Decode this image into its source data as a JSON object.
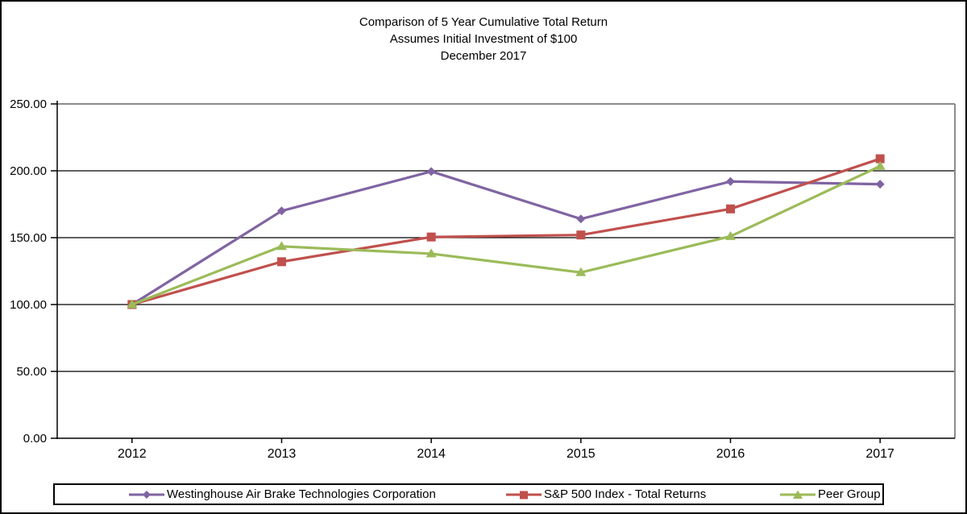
{
  "title": {
    "line1": "Comparison of 5 Year Cumulative  Total Return",
    "line2": "Assumes  Initial Investment  of $100",
    "line3": "December 2017"
  },
  "chart_data": {
    "type": "line",
    "x": [
      "2012",
      "2013",
      "2014",
      "2015",
      "2016",
      "2017"
    ],
    "series": [
      {
        "name": "Westinghouse Air Brake Technologies Corporation",
        "marker": "diamond",
        "color": "#8064A2",
        "values": [
          100.0,
          170.0,
          199.5,
          164.0,
          192.0,
          190.0
        ]
      },
      {
        "name": "S&P 500 Index - Total Returns",
        "marker": "square",
        "color": "#C0504D",
        "values": [
          100.0,
          132.0,
          150.5,
          152.0,
          171.5,
          209.0
        ]
      },
      {
        "name": "Peer Group",
        "marker": "triangle",
        "color": "#9BBB59",
        "values": [
          100.0,
          143.5,
          138.0,
          124.0,
          151.0,
          203.5
        ]
      }
    ],
    "ylim": [
      0,
      250
    ],
    "ytick_step": 50,
    "ytick_decimals": 2,
    "grid": "horizontal-black",
    "axis_color": "#000000",
    "plot_border_color": "#8C8C8C",
    "legend_position": "bottom-boxed"
  }
}
